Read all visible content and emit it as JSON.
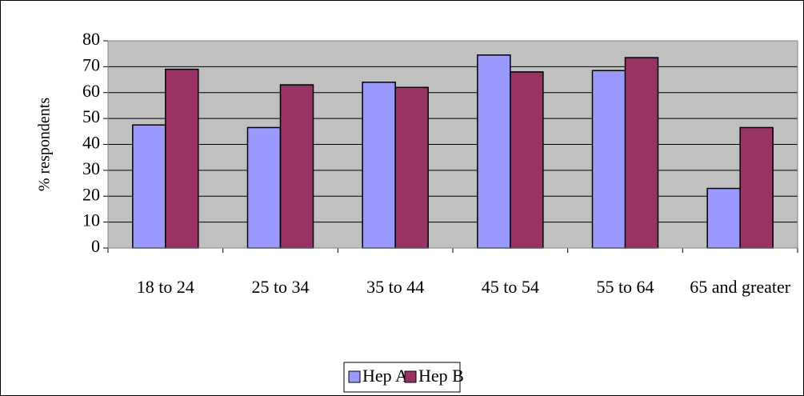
{
  "chart_data": {
    "type": "bar",
    "categories": [
      "18 to 24",
      "25 to 34",
      "35 to 44",
      "45 to 54",
      "55 to 64",
      "65 and greater"
    ],
    "series": [
      {
        "name": "Hep A",
        "color": "#9999ff",
        "values": [
          47.5,
          46.5,
          64,
          74.5,
          68.5,
          23
        ]
      },
      {
        "name": "Hep B",
        "color": "#993366",
        "values": [
          69,
          63,
          62,
          68,
          73.5,
          46.5
        ]
      }
    ],
    "y_label": "% respondents",
    "ylim": [
      0,
      80
    ],
    "yticks": [
      0,
      10,
      20,
      30,
      40,
      50,
      60,
      70,
      80
    ],
    "grid": true,
    "plot_background": "#c0c0c0",
    "legend": "bottom"
  }
}
